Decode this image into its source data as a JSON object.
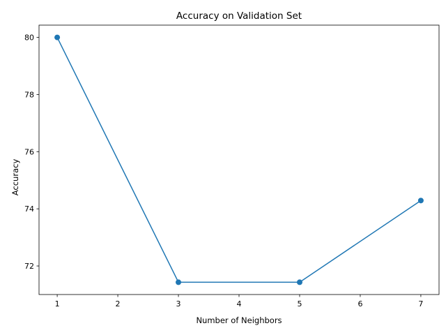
{
  "chart_data": {
    "type": "line",
    "title": "Accuracy on Validation Set",
    "xlabel": "Number of Neighbors",
    "ylabel": "Accuracy",
    "x": [
      1,
      3,
      5,
      7
    ],
    "series": [
      {
        "values": [
          80.0,
          71.43,
          71.43,
          74.29
        ]
      }
    ],
    "xticks": [
      1,
      2,
      3,
      4,
      5,
      6,
      7
    ],
    "yticks": [
      72,
      74,
      76,
      78,
      80
    ],
    "xlim": [
      0.7,
      7.3
    ],
    "ylim": [
      71.0,
      80.43
    ],
    "grid": false,
    "legend": "none",
    "colors": {
      "line": "#1f77b4",
      "axes": "#000000"
    },
    "markers": "circle"
  }
}
